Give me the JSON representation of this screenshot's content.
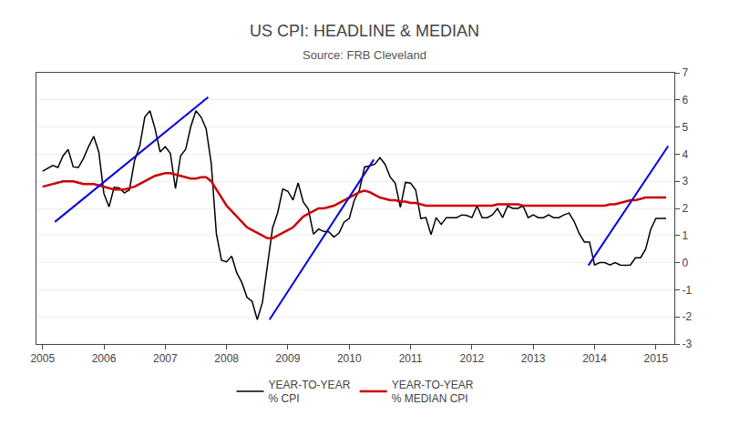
{
  "chart_data": {
    "type": "line",
    "title": "US CPI: HEADLINE & MEDIAN",
    "subtitle": "Source: FRB Cleveland",
    "x": [
      2005,
      2005.0833333333,
      2005.1666666667,
      2005.25,
      2005.3333333333,
      2005.4166666667,
      2005.5,
      2005.5833333333,
      2005.6666666667,
      2005.75,
      2005.8333333333,
      2005.9166666667,
      2006,
      2006.0833333333,
      2006.1666666667,
      2006.25,
      2006.3333333333,
      2006.4166666667,
      2006.5,
      2006.5833333333,
      2006.6666666667,
      2006.75,
      2006.8333333333,
      2006.9166666667,
      2007,
      2007.0833333333,
      2007.1666666667,
      2007.25,
      2007.3333333333,
      2007.4166666667,
      2007.5,
      2007.5833333333,
      2007.6666666667,
      2007.75,
      2007.8333333333,
      2007.9166666667,
      2008,
      2008.0833333333,
      2008.1666666667,
      2008.25,
      2008.3333333333,
      2008.4166666667,
      2008.5,
      2008.5833333333,
      2008.6666666667,
      2008.75,
      2008.8333333333,
      2008.9166666667,
      2009,
      2009.0833333333,
      2009.1666666667,
      2009.25,
      2009.3333333333,
      2009.4166666667,
      2009.5,
      2009.5833333333,
      2009.6666666667,
      2009.75,
      2009.8333333333,
      2009.9166666667,
      2010,
      2010.0833333333,
      2010.1666666667,
      2010.25,
      2010.3333333333,
      2010.4166666667,
      2010.5,
      2010.5833333333,
      2010.6666666667,
      2010.75,
      2010.8333333333,
      2010.9166666667,
      2011,
      2011.0833333333,
      2011.1666666667,
      2011.25,
      2011.3333333333,
      2011.4166666667,
      2011.5,
      2011.5833333333,
      2011.6666666667,
      2011.75,
      2011.8333333333,
      2011.9166666667,
      2012,
      2012.0833333333,
      2012.1666666667,
      2012.25,
      2012.3333333333,
      2012.4166666667,
      2012.5,
      2012.5833333333,
      2012.6666666667,
      2012.75,
      2012.8333333333,
      2012.9166666667,
      2013,
      2013.0833333333,
      2013.1666666667,
      2013.25,
      2013.3333333333,
      2013.4166666667,
      2013.5,
      2013.5833333333,
      2013.6666666667,
      2013.75,
      2013.8333333333,
      2013.9166666667,
      2014,
      2014.0833333333,
      2014.1666666667,
      2014.25,
      2014.3333333333,
      2014.4166666667,
      2014.5,
      2014.5833333333,
      2014.6666666667,
      2014.75,
      2014.8333333333,
      2014.9166666667,
      2015,
      2015.0833333333,
      2015.1666666667
    ],
    "series": [
      {
        "name": "YEAR-TO-YEAR\n% CPI",
        "color": "#000000",
        "values": [
          3.37,
          3.48,
          3.58,
          3.51,
          3.94,
          4.17,
          3.53,
          3.51,
          3.84,
          4.28,
          4.66,
          4.08,
          2.54,
          2.06,
          2.78,
          2.76,
          2.57,
          2.69,
          3.77,
          4.29,
          5.37,
          5.6,
          4.94,
          4.08,
          4.28,
          4.03,
          2.73,
          3.94,
          4.18,
          5.02,
          5.6,
          5.37,
          4.94,
          3.66,
          1.07,
          0.09,
          0.03,
          0.24,
          -0.38,
          -0.74,
          -1.28,
          -1.43,
          -2.1,
          -1.48,
          -0.09,
          1.28,
          1.84,
          2.72,
          2.63,
          2.31,
          2.94,
          2.24,
          1.97,
          1.05,
          1.24,
          1.15,
          1.14,
          0.94,
          1.09,
          1.5,
          1.63,
          2.31,
          2.68,
          3.53,
          3.57,
          3.63,
          3.87,
          3.63,
          3.16,
          2.93,
          2.04,
          2.96,
          2.93,
          2.68,
          1.63,
          1.66,
          1.03,
          1.66,
          1.41,
          1.66,
          1.66,
          1.66,
          1.76,
          1.74,
          1.66,
          2.09,
          1.66,
          1.66,
          1.76,
          2.0,
          1.66,
          2.09,
          2.0,
          2.0,
          2.09,
          1.66,
          1.76,
          1.66,
          1.66,
          1.76,
          1.66,
          1.66,
          1.76,
          1.83,
          1.52,
          1.07,
          0.76,
          0.76,
          -0.09,
          0.0,
          0.0,
          -0.09,
          0.0,
          -0.09,
          -0.1,
          -0.09,
          0.18,
          0.18,
          0.5,
          1.24,
          1.63,
          1.63,
          1.63
        ]
      },
      {
        "name": "YEAR-TO-YEAR\n% MEDIAN CPI",
        "color": "#cc0000",
        "values": [
          2.8,
          2.85,
          2.9,
          2.95,
          3.0,
          3.0,
          3.0,
          2.95,
          2.9,
          2.9,
          2.9,
          2.85,
          2.8,
          2.75,
          2.7,
          2.7,
          2.7,
          2.75,
          2.8,
          2.9,
          3.0,
          3.1,
          3.2,
          3.25,
          3.3,
          3.3,
          3.25,
          3.2,
          3.15,
          3.1,
          3.1,
          3.15,
          3.15,
          3.0,
          2.7,
          2.4,
          2.1,
          1.9,
          1.7,
          1.5,
          1.3,
          1.2,
          1.1,
          1.0,
          0.9,
          0.9,
          1.0,
          1.1,
          1.2,
          1.3,
          1.5,
          1.7,
          1.8,
          1.9,
          2.0,
          2.0,
          2.05,
          2.1,
          2.2,
          2.3,
          2.4,
          2.5,
          2.6,
          2.65,
          2.6,
          2.5,
          2.4,
          2.35,
          2.3,
          2.3,
          2.25,
          2.25,
          2.2,
          2.2,
          2.15,
          2.1,
          2.1,
          2.1,
          2.1,
          2.1,
          2.1,
          2.1,
          2.1,
          2.1,
          2.1,
          2.1,
          2.1,
          2.1,
          2.1,
          2.15,
          2.15,
          2.15,
          2.15,
          2.15,
          2.1,
          2.1,
          2.1,
          2.1,
          2.1,
          2.1,
          2.1,
          2.1,
          2.1,
          2.1,
          2.1,
          2.1,
          2.1,
          2.1,
          2.1,
          2.1,
          2.1,
          2.15,
          2.15,
          2.2,
          2.25,
          2.3,
          2.3,
          2.35,
          2.4,
          2.4,
          2.4,
          2.4,
          2.4
        ]
      },
      {
        "color": "#0000dd",
        "x": [
          2005.2,
          2007.7
        ],
        "values": [
          1.5,
          6.1
        ]
      },
      {
        "color": "#0000dd",
        "x": [
          2008.7,
          2010.4
        ],
        "values": [
          -2.1,
          3.8
        ]
      },
      {
        "color": "#0000dd",
        "x": [
          2013.9,
          2015.2
        ],
        "values": [
          -0.1,
          4.3
        ]
      }
    ],
    "xlim": [
      2004.9,
      2015.3
    ],
    "xticks": [
      2005,
      2006,
      2007,
      2008,
      2009,
      2010,
      2011,
      2012,
      2013,
      2014,
      2015
    ],
    "ylim": [
      -3,
      7
    ],
    "yticks": [
      -3,
      -2,
      -1,
      0,
      1,
      2,
      3,
      4,
      5,
      6,
      7
    ],
    "grid": true,
    "legend": "bottom"
  }
}
